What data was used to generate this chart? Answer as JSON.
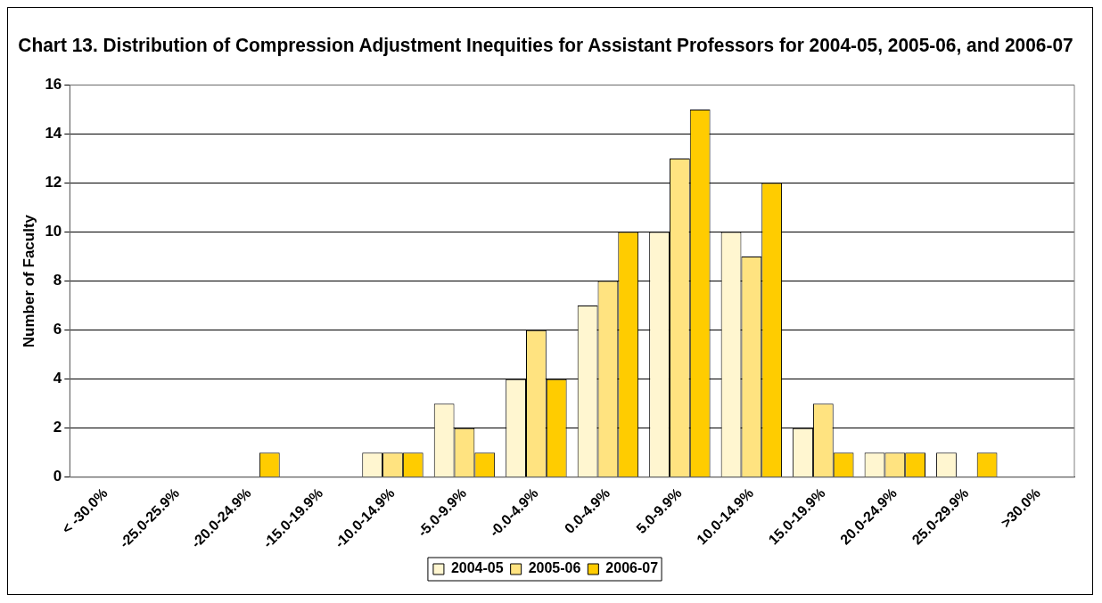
{
  "chart_data": {
    "type": "bar",
    "title": "Chart 13. Distribution of Compression Adjustment Inequities for Assistant Professors for 2004-05, 2005-06, and 2006-07",
    "ylabel": "Number of Faculty",
    "categories": [
      "< -30.0%",
      "-25.0-25.9%",
      "-20.0-24.9%",
      "-15.0-19.9%",
      "-10.0-14.9%",
      "-5.0-9.9%",
      "-0.0-4.9%",
      "0.0-4.9%",
      "5.0-9.9%",
      "10.0-14.9%",
      "15.0-19.9%",
      "20.0-24.9%",
      "25.0-29.9%",
      ">30.0%"
    ],
    "series": [
      {
        "name": "2004-05",
        "color": "#fff6d0",
        "values": [
          0,
          0,
          0,
          0,
          1,
          3,
          4,
          7,
          10,
          10,
          2,
          1,
          1,
          0
        ]
      },
      {
        "name": "2005-06",
        "color": "#ffe380",
        "values": [
          0,
          0,
          0,
          0,
          1,
          2,
          6,
          8,
          13,
          9,
          3,
          1,
          0,
          0
        ]
      },
      {
        "name": "2006-07",
        "color": "#ffcc00",
        "values": [
          0,
          0,
          1,
          0,
          1,
          1,
          4,
          10,
          15,
          12,
          1,
          1,
          1,
          0
        ]
      }
    ],
    "ylim": [
      0,
      16
    ],
    "yticks": [
      0,
      2,
      4,
      6,
      8,
      10,
      12,
      14,
      16
    ],
    "grid": "y",
    "legend": "bottom"
  }
}
